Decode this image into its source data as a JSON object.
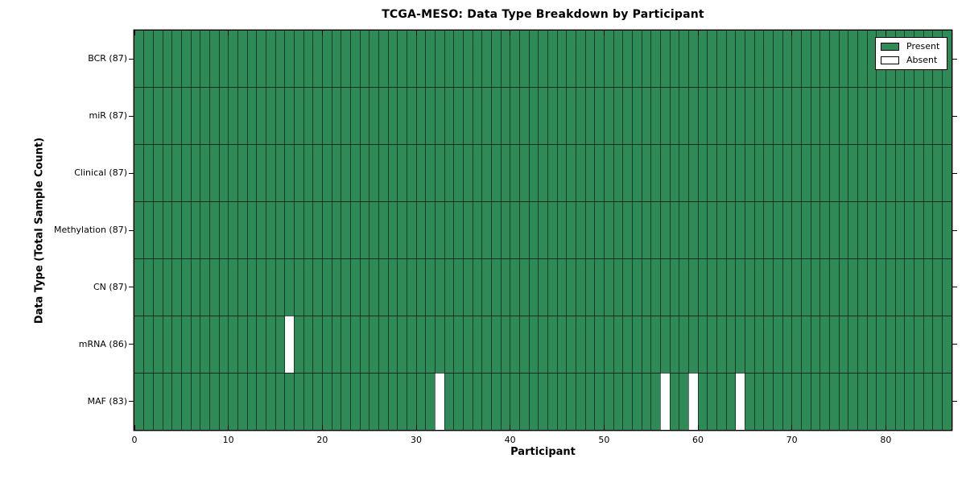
{
  "chart_data": {
    "type": "heatmap",
    "title": "TCGA-MESO: Data Type Breakdown by Participant",
    "xlabel": "Participant",
    "ylabel": "Data Type (Total Sample Count)",
    "x_range": [
      0,
      87
    ],
    "n_participants": 87,
    "x_tick_values": [
      0,
      10,
      20,
      30,
      40,
      50,
      60,
      70,
      80
    ],
    "x_tick_labels": [
      "0",
      "10",
      "20",
      "30",
      "40",
      "50",
      "60",
      "70",
      "80"
    ],
    "rows": [
      {
        "label": "BCR",
        "present_count": 87,
        "display": "BCR (87)",
        "absent_participants": []
      },
      {
        "label": "miR",
        "present_count": 87,
        "display": "miR (87)",
        "absent_participants": []
      },
      {
        "label": "Clinical",
        "present_count": 87,
        "display": "Clinical (87)",
        "absent_participants": []
      },
      {
        "label": "Methylation",
        "present_count": 87,
        "display": "Methylation (87)",
        "absent_participants": []
      },
      {
        "label": "CN",
        "present_count": 87,
        "display": "CN (87)",
        "absent_participants": []
      },
      {
        "label": "mRNA",
        "present_count": 86,
        "display": "mRNA (86)",
        "absent_participants": [
          16
        ]
      },
      {
        "label": "MAF",
        "present_count": 83,
        "display": "MAF (83)",
        "absent_participants": [
          32,
          56,
          59,
          64
        ]
      }
    ],
    "legend": {
      "position": "upper right",
      "entries": [
        {
          "label": "Present",
          "color": "#2e8b57"
        },
        {
          "label": "Absent",
          "color": "#ffffff"
        }
      ]
    },
    "colors": {
      "present": "#2e8b57",
      "absent": "#ffffff",
      "grid_line": "#000000",
      "background": "#ffffff"
    },
    "grid": true
  }
}
